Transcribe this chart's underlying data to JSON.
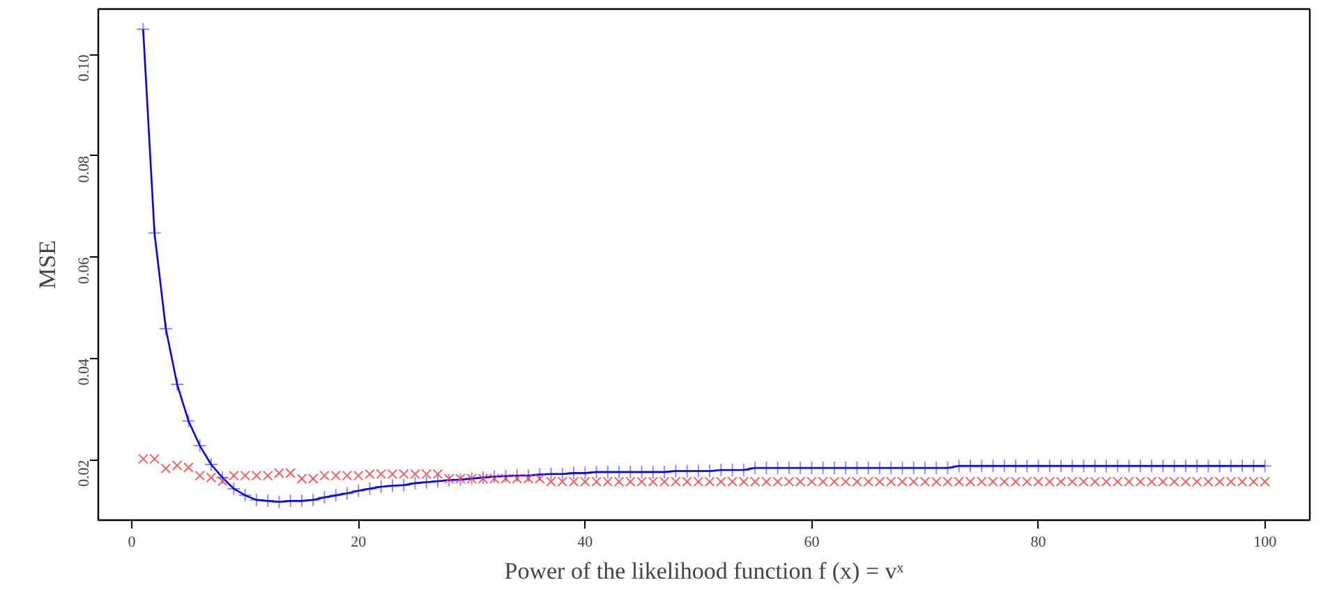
{
  "chart_data": {
    "type": "scatter",
    "xlabel": "Power of the likelihood function f (x) = vˣ",
    "ylabel": "MSE",
    "x": [
      1,
      2,
      3,
      4,
      5,
      6,
      7,
      8,
      9,
      10,
      11,
      12,
      13,
      14,
      15,
      16,
      17,
      18,
      19,
      20,
      21,
      22,
      23,
      24,
      25,
      26,
      27,
      28,
      29,
      30,
      31,
      32,
      33,
      34,
      35,
      36,
      37,
      38,
      39,
      40,
      41,
      42,
      43,
      44,
      45,
      46,
      47,
      48,
      49,
      50,
      51,
      52,
      53,
      54,
      55,
      56,
      57,
      58,
      59,
      60,
      61,
      62,
      63,
      64,
      65,
      66,
      67,
      68,
      69,
      70,
      71,
      72,
      73,
      74,
      75,
      76,
      77,
      78,
      79,
      80,
      81,
      82,
      83,
      84,
      85,
      86,
      87,
      88,
      89,
      90,
      91,
      92,
      93,
      94,
      95,
      96,
      97,
      98,
      99,
      100
    ],
    "series": [
      {
        "type": "line",
        "marker": "cross",
        "color": "#0000ff",
        "values": [
          0.105,
          0.0648,
          0.0459,
          0.0349,
          0.0277,
          0.0228,
          0.0191,
          0.0165,
          0.0143,
          0.013,
          0.0121,
          0.0119,
          0.0117,
          0.0119,
          0.0119,
          0.0121,
          0.0126,
          0.013,
          0.0134,
          0.0139,
          0.0143,
          0.0147,
          0.0149,
          0.015,
          0.0154,
          0.0156,
          0.0158,
          0.016,
          0.0161,
          0.0163,
          0.0165,
          0.0167,
          0.0168,
          0.0169,
          0.0169,
          0.0171,
          0.0172,
          0.0172,
          0.0174,
          0.0174,
          0.0176,
          0.0176,
          0.0176,
          0.0176,
          0.0176,
          0.0176,
          0.0176,
          0.0178,
          0.0178,
          0.0178,
          0.0178,
          0.018,
          0.018,
          0.018,
          0.0184,
          0.0184,
          0.0184,
          0.0184,
          0.0184,
          0.0184,
          0.0184,
          0.0184,
          0.0184,
          0.0184,
          0.0184,
          0.0184,
          0.0184,
          0.0184,
          0.0184,
          0.0184,
          0.0184,
          0.0184,
          0.0188,
          0.0188,
          0.0188,
          0.0188,
          0.0188,
          0.0188,
          0.0188,
          0.0188,
          0.0188,
          0.0188,
          0.0188,
          0.0188,
          0.0188,
          0.0188,
          0.0188,
          0.0188,
          0.0188,
          0.0188,
          0.0188,
          0.0188,
          0.0188,
          0.0188,
          0.0188,
          0.0188,
          0.0188,
          0.0188,
          0.0188,
          0.0188
        ]
      },
      {
        "marker": "x",
        "color": "#ff3333",
        "values": [
          0.0202,
          0.0202,
          0.0183,
          0.0189,
          0.0185,
          0.0169,
          0.0165,
          0.0158,
          0.0169,
          0.0169,
          0.0169,
          0.0169,
          0.0174,
          0.0174,
          0.0163,
          0.0163,
          0.0169,
          0.0169,
          0.0169,
          0.0169,
          0.0172,
          0.0172,
          0.0172,
          0.0172,
          0.0172,
          0.0172,
          0.0172,
          0.0163,
          0.0163,
          0.0163,
          0.0163,
          0.0163,
          0.0163,
          0.0163,
          0.0163,
          0.0163,
          0.0157,
          0.0157,
          0.0157,
          0.0157,
          0.0157,
          0.0157,
          0.0157,
          0.0157,
          0.0157,
          0.0157,
          0.0157,
          0.0157,
          0.0157,
          0.0157,
          0.0157,
          0.0157,
          0.0157,
          0.0157,
          0.0157,
          0.0157,
          0.0157,
          0.0157,
          0.0157,
          0.0157,
          0.0157,
          0.0157,
          0.0157,
          0.0157,
          0.0157,
          0.0157,
          0.0157,
          0.0157,
          0.0157,
          0.0157,
          0.0157,
          0.0157,
          0.0157,
          0.0157,
          0.0157,
          0.0157,
          0.0157,
          0.0157,
          0.0157,
          0.0157,
          0.0157,
          0.0157,
          0.0157,
          0.0157,
          0.0157,
          0.0157,
          0.0157,
          0.0157,
          0.0157,
          0.0157,
          0.0157,
          0.0157,
          0.0157,
          0.0157,
          0.0157,
          0.0157,
          0.0157,
          0.0157,
          0.0157,
          0.0157
        ]
      }
    ],
    "xlim": [
      -2.96,
      103.96
    ],
    "ylim": [
      0.0081,
      0.109
    ],
    "xticks": [
      0,
      20,
      40,
      60,
      80,
      100
    ],
    "yticks": [
      {
        "value": 0.02,
        "label": "0.02"
      },
      {
        "value": 0.04,
        "label": "0.04"
      },
      {
        "value": 0.06,
        "label": "0.06"
      },
      {
        "value": 0.08,
        "label": "0.08"
      },
      {
        "value": 0.1,
        "label": "0.10"
      }
    ],
    "grid": false
  }
}
